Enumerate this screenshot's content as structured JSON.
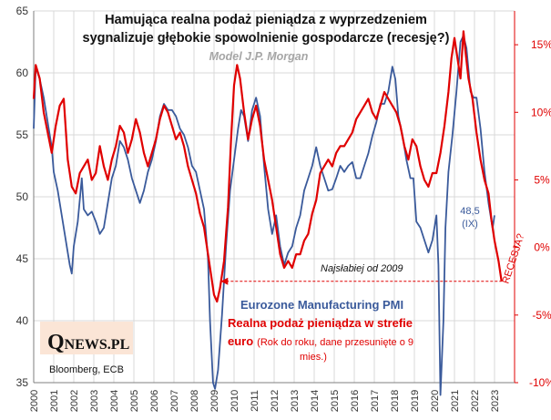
{
  "chart_data": {
    "type": "line",
    "title_line1": "Hamująca realna podaż pieniądza z wyprzedzeniem",
    "title_line2": "sygnalizuje głębokie spowolnienie gospodarcze (recesję?)",
    "subtitle": "Model J.P. Morgan",
    "x_ticks": [
      "2000",
      "2001",
      "2002",
      "2003",
      "2004",
      "2005",
      "2006",
      "2007",
      "2008",
      "2009",
      "2010",
      "2011",
      "2012",
      "2013",
      "2014",
      "2015",
      "2016",
      "2017",
      "2018",
      "2019",
      "2020",
      "2021",
      "2022",
      "2023"
    ],
    "xlim": [
      2000,
      2024
    ],
    "y_left": {
      "lim": [
        35,
        65
      ],
      "ticks": [
        "35",
        "40",
        "45",
        "50",
        "55",
        "60",
        "65"
      ]
    },
    "y_right": {
      "lim": [
        -10,
        17.5
      ],
      "ticks": [
        "-10%",
        "-5%",
        "0%",
        "5%",
        "10%",
        "15%"
      ]
    },
    "series": [
      {
        "name": "Eurozone Manufacturing PMI",
        "axis": "left",
        "color": "#3a5a9b",
        "points": [
          [
            2000.0,
            55.5
          ],
          [
            2000.1,
            60.5
          ],
          [
            2000.3,
            59.5
          ],
          [
            2000.5,
            58.0
          ],
          [
            2000.7,
            56.0
          ],
          [
            2000.9,
            54.0
          ],
          [
            2001.0,
            52.0
          ],
          [
            2001.2,
            50.5
          ],
          [
            2001.4,
            48.5
          ],
          [
            2001.6,
            46.5
          ],
          [
            2001.8,
            44.5
          ],
          [
            2001.9,
            43.8
          ],
          [
            2002.0,
            46.0
          ],
          [
            2002.2,
            48.0
          ],
          [
            2002.4,
            51.5
          ],
          [
            2002.5,
            49.0
          ],
          [
            2002.7,
            48.5
          ],
          [
            2002.9,
            48.8
          ],
          [
            2003.1,
            48.0
          ],
          [
            2003.3,
            47.0
          ],
          [
            2003.5,
            47.5
          ],
          [
            2003.7,
            49.5
          ],
          [
            2003.9,
            51.5
          ],
          [
            2004.1,
            52.5
          ],
          [
            2004.3,
            54.5
          ],
          [
            2004.5,
            54.0
          ],
          [
            2004.7,
            53.0
          ],
          [
            2004.9,
            51.5
          ],
          [
            2005.1,
            50.5
          ],
          [
            2005.3,
            49.5
          ],
          [
            2005.5,
            50.5
          ],
          [
            2005.7,
            52.0
          ],
          [
            2005.9,
            53.0
          ],
          [
            2006.1,
            54.5
          ],
          [
            2006.3,
            56.5
          ],
          [
            2006.5,
            57.5
          ],
          [
            2006.7,
            57.0
          ],
          [
            2006.9,
            57.0
          ],
          [
            2007.1,
            56.5
          ],
          [
            2007.3,
            55.5
          ],
          [
            2007.5,
            55.0
          ],
          [
            2007.7,
            54.0
          ],
          [
            2007.9,
            52.5
          ],
          [
            2008.1,
            52.0
          ],
          [
            2008.3,
            50.5
          ],
          [
            2008.5,
            49.0
          ],
          [
            2008.7,
            45.0
          ],
          [
            2008.8,
            40.0
          ],
          [
            2008.95,
            35.0
          ],
          [
            2009.05,
            34.5
          ],
          [
            2009.2,
            36.0
          ],
          [
            2009.4,
            40.5
          ],
          [
            2009.6,
            46.0
          ],
          [
            2009.8,
            50.5
          ],
          [
            2010.0,
            53.0
          ],
          [
            2010.2,
            55.5
          ],
          [
            2010.35,
            57.0
          ],
          [
            2010.5,
            56.5
          ],
          [
            2010.7,
            54.5
          ],
          [
            2010.9,
            57.0
          ],
          [
            2011.1,
            58.0
          ],
          [
            2011.3,
            56.5
          ],
          [
            2011.5,
            52.5
          ],
          [
            2011.7,
            49.0
          ],
          [
            2011.9,
            47.0
          ],
          [
            2012.1,
            48.5
          ],
          [
            2012.3,
            46.0
          ],
          [
            2012.5,
            44.5
          ],
          [
            2012.7,
            45.5
          ],
          [
            2012.9,
            46.0
          ],
          [
            2013.1,
            47.5
          ],
          [
            2013.3,
            48.5
          ],
          [
            2013.5,
            50.5
          ],
          [
            2013.7,
            51.5
          ],
          [
            2013.9,
            52.5
          ],
          [
            2014.1,
            54.0
          ],
          [
            2014.3,
            52.5
          ],
          [
            2014.5,
            51.5
          ],
          [
            2014.7,
            50.5
          ],
          [
            2014.9,
            50.6
          ],
          [
            2015.1,
            51.5
          ],
          [
            2015.3,
            52.5
          ],
          [
            2015.5,
            52.0
          ],
          [
            2015.7,
            52.5
          ],
          [
            2015.9,
            52.8
          ],
          [
            2016.1,
            51.5
          ],
          [
            2016.3,
            51.5
          ],
          [
            2016.5,
            52.5
          ],
          [
            2016.7,
            53.5
          ],
          [
            2016.9,
            54.9
          ],
          [
            2017.1,
            56.0
          ],
          [
            2017.3,
            57.5
          ],
          [
            2017.5,
            57.5
          ],
          [
            2017.7,
            58.5
          ],
          [
            2017.9,
            60.5
          ],
          [
            2018.05,
            59.5
          ],
          [
            2018.2,
            56.5
          ],
          [
            2018.4,
            55.0
          ],
          [
            2018.6,
            53.0
          ],
          [
            2018.8,
            51.5
          ],
          [
            2018.95,
            51.5
          ],
          [
            2019.1,
            48.0
          ],
          [
            2019.3,
            47.5
          ],
          [
            2019.5,
            46.5
          ],
          [
            2019.7,
            45.5
          ],
          [
            2019.9,
            46.5
          ],
          [
            2020.1,
            48.5
          ],
          [
            2020.2,
            44.5
          ],
          [
            2020.3,
            34.0
          ],
          [
            2020.45,
            40.0
          ],
          [
            2020.55,
            47.5
          ],
          [
            2020.7,
            52.0
          ],
          [
            2020.9,
            55.0
          ],
          [
            2021.1,
            58.5
          ],
          [
            2021.3,
            62.5
          ],
          [
            2021.45,
            63.0
          ],
          [
            2021.6,
            62.0
          ],
          [
            2021.8,
            58.5
          ],
          [
            2021.95,
            58.0
          ],
          [
            2022.1,
            58.0
          ],
          [
            2022.3,
            55.5
          ],
          [
            2022.5,
            52.0
          ],
          [
            2022.7,
            49.5
          ],
          [
            2022.9,
            47.5
          ],
          [
            2023.0,
            48.5
          ]
        ]
      },
      {
        "name": "Realna podaż pieniądza w strefie euro",
        "axis": "right",
        "color": "#e00000",
        "points": [
          [
            2000.0,
            11.0
          ],
          [
            2000.1,
            13.5
          ],
          [
            2000.3,
            12.5
          ],
          [
            2000.5,
            10.0
          ],
          [
            2000.7,
            8.5
          ],
          [
            2000.9,
            7.0
          ],
          [
            2001.1,
            9.0
          ],
          [
            2001.3,
            10.5
          ],
          [
            2001.5,
            11.0
          ],
          [
            2001.7,
            6.5
          ],
          [
            2001.9,
            4.5
          ],
          [
            2002.1,
            4.0
          ],
          [
            2002.3,
            5.5
          ],
          [
            2002.5,
            6.0
          ],
          [
            2002.7,
            6.5
          ],
          [
            2002.9,
            5.0
          ],
          [
            2003.1,
            5.5
          ],
          [
            2003.3,
            7.5
          ],
          [
            2003.5,
            6.0
          ],
          [
            2003.7,
            5.0
          ],
          [
            2003.9,
            6.5
          ],
          [
            2004.1,
            7.5
          ],
          [
            2004.3,
            9.0
          ],
          [
            2004.5,
            8.5
          ],
          [
            2004.7,
            7.0
          ],
          [
            2004.9,
            8.0
          ],
          [
            2005.1,
            9.5
          ],
          [
            2005.3,
            8.5
          ],
          [
            2005.5,
            7.0
          ],
          [
            2005.7,
            6.0
          ],
          [
            2005.9,
            7.0
          ],
          [
            2006.1,
            8.0
          ],
          [
            2006.3,
            9.5
          ],
          [
            2006.5,
            10.5
          ],
          [
            2006.7,
            10.0
          ],
          [
            2006.9,
            9.0
          ],
          [
            2007.1,
            8.0
          ],
          [
            2007.3,
            8.5
          ],
          [
            2007.5,
            7.5
          ],
          [
            2007.7,
            6.0
          ],
          [
            2007.9,
            5.0
          ],
          [
            2008.1,
            4.0
          ],
          [
            2008.3,
            2.5
          ],
          [
            2008.5,
            1.5
          ],
          [
            2008.7,
            -0.5
          ],
          [
            2008.85,
            -2.0
          ],
          [
            2009.0,
            -3.5
          ],
          [
            2009.15,
            -4.0
          ],
          [
            2009.3,
            -3.0
          ],
          [
            2009.5,
            -1.0
          ],
          [
            2009.7,
            3.0
          ],
          [
            2009.85,
            8.0
          ],
          [
            2010.0,
            12.0
          ],
          [
            2010.15,
            13.5
          ],
          [
            2010.3,
            12.5
          ],
          [
            2010.5,
            10.0
          ],
          [
            2010.7,
            8.0
          ],
          [
            2010.9,
            9.5
          ],
          [
            2011.1,
            10.5
          ],
          [
            2011.3,
            9.0
          ],
          [
            2011.5,
            6.5
          ],
          [
            2011.7,
            5.0
          ],
          [
            2011.9,
            3.5
          ],
          [
            2012.1,
            1.5
          ],
          [
            2012.3,
            -0.5
          ],
          [
            2012.5,
            -1.5
          ],
          [
            2012.7,
            -1.0
          ],
          [
            2012.9,
            -1.5
          ],
          [
            2013.1,
            -0.5
          ],
          [
            2013.3,
            -0.5
          ],
          [
            2013.5,
            0.5
          ],
          [
            2013.7,
            1.0
          ],
          [
            2013.9,
            2.5
          ],
          [
            2014.1,
            3.5
          ],
          [
            2014.3,
            5.5
          ],
          [
            2014.5,
            6.0
          ],
          [
            2014.7,
            6.5
          ],
          [
            2014.9,
            6.0
          ],
          [
            2015.1,
            7.0
          ],
          [
            2015.3,
            7.5
          ],
          [
            2015.5,
            7.5
          ],
          [
            2015.7,
            8.0
          ],
          [
            2015.9,
            8.5
          ],
          [
            2016.1,
            9.5
          ],
          [
            2016.3,
            10.0
          ],
          [
            2016.5,
            10.5
          ],
          [
            2016.7,
            11.0
          ],
          [
            2016.9,
            10.0
          ],
          [
            2017.1,
            9.5
          ],
          [
            2017.3,
            10.5
          ],
          [
            2017.5,
            11.5
          ],
          [
            2017.7,
            11.0
          ],
          [
            2017.9,
            10.5
          ],
          [
            2018.1,
            10.0
          ],
          [
            2018.3,
            9.0
          ],
          [
            2018.5,
            7.5
          ],
          [
            2018.7,
            6.5
          ],
          [
            2018.9,
            8.0
          ],
          [
            2019.1,
            7.5
          ],
          [
            2019.3,
            6.0
          ],
          [
            2019.5,
            5.0
          ],
          [
            2019.7,
            4.5
          ],
          [
            2019.9,
            5.5
          ],
          [
            2020.1,
            5.5
          ],
          [
            2020.3,
            7.0
          ],
          [
            2020.5,
            9.0
          ],
          [
            2020.7,
            11.5
          ],
          [
            2020.85,
            14.0
          ],
          [
            2021.0,
            15.5
          ],
          [
            2021.15,
            14.0
          ],
          [
            2021.3,
            12.5
          ],
          [
            2021.45,
            16.0
          ],
          [
            2021.55,
            14.5
          ],
          [
            2021.7,
            12.5
          ],
          [
            2021.9,
            11.0
          ],
          [
            2022.1,
            8.5
          ],
          [
            2022.3,
            6.5
          ],
          [
            2022.5,
            5.0
          ],
          [
            2022.7,
            4.0
          ],
          [
            2022.85,
            2.0
          ],
          [
            2023.0,
            0.5
          ],
          [
            2023.2,
            -1.0
          ],
          [
            2023.35,
            -2.5
          ]
        ]
      }
    ],
    "last_value_label": "48,5",
    "last_value_month": "(IX)",
    "hline_label": "Najsłabiej od 2009",
    "recession_label": "RECESJA?",
    "grid": true
  },
  "legend": {
    "blue": "Eurozone Manufacturing PMI",
    "red_bold_1": "Realna podaż pieniądza w strefie",
    "red_bold_2": "euro",
    "red_note_1": "(Rok do roku, dane przesunięte o 9",
    "red_note_2": "mies.)"
  },
  "source": "Bloomberg, ECB",
  "logo": {
    "q": "Q",
    "rest": "NEWS.PL"
  },
  "colors": {
    "pmi": "#3a5a9b",
    "money": "#e00000",
    "grid": "#d9d9d9",
    "logo_bg": "#fbe5d6"
  }
}
